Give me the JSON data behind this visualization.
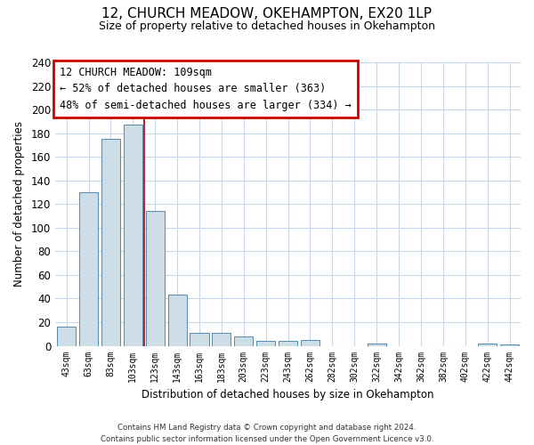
{
  "title": "12, CHURCH MEADOW, OKEHAMPTON, EX20 1LP",
  "subtitle": "Size of property relative to detached houses in Okehampton",
  "xlabel": "Distribution of detached houses by size in Okehampton",
  "ylabel": "Number of detached properties",
  "bar_labels": [
    "43sqm",
    "63sqm",
    "83sqm",
    "103sqm",
    "123sqm",
    "143sqm",
    "163sqm",
    "183sqm",
    "203sqm",
    "223sqm",
    "243sqm",
    "262sqm",
    "282sqm",
    "302sqm",
    "322sqm",
    "342sqm",
    "362sqm",
    "382sqm",
    "402sqm",
    "422sqm",
    "442sqm"
  ],
  "bar_values": [
    16,
    130,
    175,
    187,
    114,
    43,
    11,
    11,
    8,
    4,
    4,
    5,
    0,
    0,
    2,
    0,
    0,
    0,
    0,
    2,
    1
  ],
  "bar_color": "#ccdde8",
  "bar_edge_color": "#5588aa",
  "vline_index": 3.5,
  "vline_color": "#aa0000",
  "annotation_title": "12 CHURCH MEADOW: 109sqm",
  "annotation_line1": "← 52% of detached houses are smaller (363)",
  "annotation_line2": "48% of semi-detached houses are larger (334) →",
  "annotation_box_color": "#ffffff",
  "annotation_box_edge": "#cc0000",
  "ylim": [
    0,
    240
  ],
  "yticks": [
    0,
    20,
    40,
    60,
    80,
    100,
    120,
    140,
    160,
    180,
    200,
    220,
    240
  ],
  "footer_line1": "Contains HM Land Registry data © Crown copyright and database right 2024.",
  "footer_line2": "Contains public sector information licensed under the Open Government Licence v3.0.",
  "background_color": "#ffffff",
  "grid_color": "#c8d8e8"
}
